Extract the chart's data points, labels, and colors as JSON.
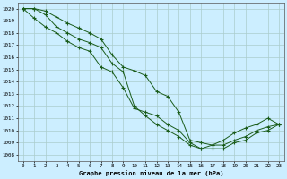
{
  "title": "Graphe pression niveau de la mer (hPa)",
  "background_color": "#cceeff",
  "grid_color": "#aacccc",
  "line_color": "#1a5c1a",
  "marker_color": "#1a5c1a",
  "xlim": [
    -0.5,
    23.5
  ],
  "ylim": [
    1007.5,
    1020.5
  ],
  "x_ticks": [
    0,
    1,
    2,
    3,
    4,
    5,
    6,
    7,
    8,
    9,
    10,
    11,
    12,
    13,
    14,
    15,
    16,
    17,
    18,
    19,
    20,
    21,
    22,
    23
  ],
  "y_ticks": [
    1008,
    1009,
    1010,
    1011,
    1012,
    1013,
    1014,
    1015,
    1016,
    1017,
    1018,
    1019,
    1020
  ],
  "series1": [
    1020.0,
    1020.0,
    1019.8,
    1019.3,
    1018.8,
    1018.4,
    1018.0,
    1017.5,
    1016.2,
    1015.2,
    1014.9,
    1014.5,
    1013.2,
    1012.8,
    1011.5,
    1009.2,
    1009.0,
    1008.8,
    1008.8,
    1009.2,
    1009.5,
    1010.0,
    1010.3,
    1010.5
  ],
  "series2": [
    1020.0,
    1019.2,
    1018.5,
    1018.0,
    1017.3,
    1016.8,
    1016.5,
    1015.2,
    1014.8,
    1013.5,
    1011.8,
    1011.5,
    1011.2,
    1010.5,
    1010.0,
    1009.0,
    1008.5,
    1008.5,
    1008.5,
    1009.0,
    1009.2,
    1009.8,
    1010.0,
    1010.5
  ],
  "series3": [
    1020.0,
    1020.0,
    1019.5,
    1018.5,
    1018.0,
    1017.5,
    1017.2,
    1016.8,
    1015.5,
    1014.8,
    1012.0,
    1011.2,
    1010.5,
    1010.0,
    1009.5,
    1008.8,
    1008.5,
    1008.8,
    1009.2,
    1009.8,
    1010.2,
    1010.5,
    1011.0,
    1010.5
  ]
}
